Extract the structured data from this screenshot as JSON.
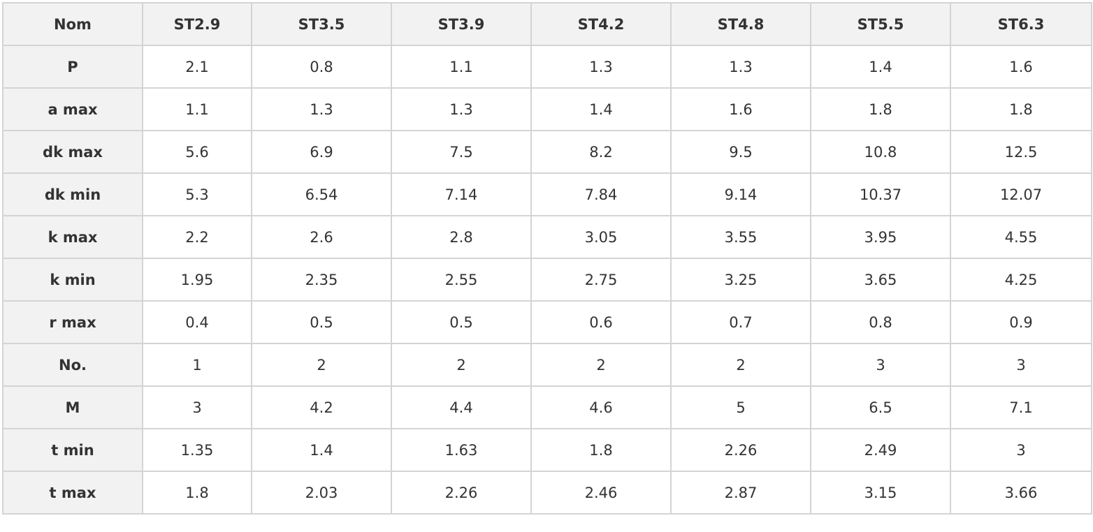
{
  "table": {
    "header": [
      "Nom",
      "ST2.9",
      "ST3.5",
      "ST3.9",
      "ST4.2",
      "ST4.8",
      "ST5.5",
      "ST6.3"
    ],
    "rows": [
      [
        "P",
        "2.1",
        "0.8",
        "1.1",
        "1.3",
        "1.3",
        "1.4",
        "1.6"
      ],
      [
        "a max",
        "1.1",
        "1.3",
        "1.3",
        "1.4",
        "1.6",
        "1.8",
        "1.8"
      ],
      [
        "dk max",
        "5.6",
        "6.9",
        "7.5",
        "8.2",
        "9.5",
        "10.8",
        "12.5"
      ],
      [
        "dk min",
        "5.3",
        "6.54",
        "7.14",
        "7.84",
        "9.14",
        "10.37",
        "12.07"
      ],
      [
        "k max",
        "2.2",
        "2.6",
        "2.8",
        "3.05",
        "3.55",
        "3.95",
        "4.55"
      ],
      [
        "k min",
        "1.95",
        "2.35",
        "2.55",
        "2.75",
        "3.25",
        "3.65",
        "4.25"
      ],
      [
        "r max",
        "0.4",
        "0.5",
        "0.5",
        "0.6",
        "0.7",
        "0.8",
        "0.9"
      ],
      [
        "No.",
        "1",
        "2",
        "2",
        "2",
        "2",
        "3",
        "3"
      ],
      [
        "M",
        "3",
        "4.2",
        "4.4",
        "4.6",
        "5",
        "6.5",
        "7.1"
      ],
      [
        "t min",
        "1.35",
        "1.4",
        "1.63",
        "1.8",
        "2.26",
        "2.49",
        "3"
      ],
      [
        "t max",
        "1.8",
        "2.03",
        "2.26",
        "2.46",
        "2.87",
        "3.15",
        "3.66"
      ]
    ]
  }
}
